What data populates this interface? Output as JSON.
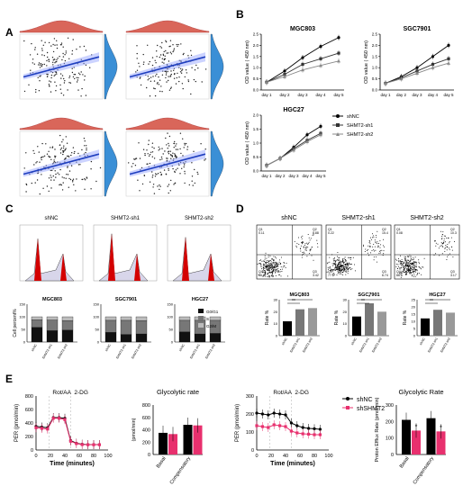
{
  "panel_labels": {
    "A": "A",
    "B": "B",
    "C": "C",
    "D": "D",
    "E": "E"
  },
  "colors": {
    "blue": "#1f3fbf",
    "red_density": "#d9665a",
    "blue_density": "#3a8fd6",
    "pink": "#e8306e",
    "bar_black": "#111111",
    "bar_gray": "#777777",
    "bar_light": "#bbbbbb"
  },
  "panel_B": {
    "legend": [
      "shNC",
      "SHMT2-sh1",
      "SHMT2-sh2"
    ],
    "ylabel": "OD value ( 450 nm)",
    "ticks": [
      "day 1",
      "day 2",
      "day 3",
      "day 4",
      "day 5"
    ]
  },
  "panel_C": {
    "titles": [
      "shNC",
      "SHMT2-sh1",
      "SHMT2-sh2"
    ],
    "legend": [
      "G0/G1",
      "S",
      "G2/M"
    ],
    "ylabel": "Cell percent%"
  },
  "panel_D": {
    "titles": [
      "shNC",
      "SHMT2-sh1",
      "SHMT2-sh2"
    ],
    "ylabel": "Rate %",
    "quadrants": [
      [
        "0.11",
        "8.88",
        "86.6",
        "3.42"
      ],
      [
        "0.22",
        "15.4",
        "77.8",
        "6.74"
      ],
      [
        "0.08",
        "10.3",
        "86.6",
        "3.17"
      ]
    ],
    "sig": [
      "**",
      "*"
    ]
  },
  "panel_E": {
    "per_ylabel": "PER (pmol/min)",
    "per_xlabel": "Time (minutes)",
    "injections": [
      "Rot/AA",
      "2-DG"
    ],
    "gly_title_1": "Glycolytic rate",
    "gly_ylabel_1": "(pmol/min)",
    "gly_cats": [
      "Basal",
      "Compensatory"
    ],
    "gly_title_2": "Glycolytic Rate",
    "gly_ylabel_2": "Proton Efflux Rate (pmol/min)",
    "legend": [
      "shNC",
      "shSHMT2"
    ],
    "star": "*"
  },
  "chart_data": [
    {
      "type": "line",
      "title": "MGC803",
      "categories": [
        "day 1",
        "day 2",
        "day 3",
        "day 4",
        "day 5"
      ],
      "ylim": [
        0,
        2.5
      ],
      "yticks": [
        "0.0",
        "0.5",
        "1.0",
        "1.5",
        "2.0",
        "2.5"
      ],
      "series": [
        {
          "name": "shNC",
          "values": [
            0.35,
            0.85,
            1.45,
            1.95,
            2.35
          ]
        },
        {
          "name": "SHMT2-sh1",
          "values": [
            0.35,
            0.7,
            1.15,
            1.4,
            1.65
          ]
        },
        {
          "name": "SHMT2-sh2",
          "values": [
            0.35,
            0.6,
            0.9,
            1.1,
            1.3
          ]
        }
      ]
    },
    {
      "type": "line",
      "title": "SGC7901",
      "categories": [
        "day 1",
        "day 2",
        "day 3",
        "day 4",
        "day 5"
      ],
      "ylim": [
        0,
        2.5
      ],
      "yticks": [
        "0.0",
        "0.5",
        "1.0",
        "1.5",
        "2.0",
        "2.5"
      ],
      "series": [
        {
          "name": "shNC",
          "values": [
            0.3,
            0.6,
            1.0,
            1.5,
            2.0
          ]
        },
        {
          "name": "SHMT2-sh1",
          "values": [
            0.3,
            0.55,
            0.85,
            1.15,
            1.4
          ]
        },
        {
          "name": "SHMT2-sh2",
          "values": [
            0.3,
            0.5,
            0.75,
            1.0,
            1.2
          ]
        }
      ]
    },
    {
      "type": "line",
      "title": "HGC27",
      "categories": [
        "day 1",
        "day 2",
        "day 3",
        "day 4",
        "day 5"
      ],
      "ylim": [
        0,
        2.0
      ],
      "yticks": [
        "0.0",
        "0.5",
        "1.0",
        "1.5",
        "2.0"
      ],
      "series": [
        {
          "name": "shNC",
          "values": [
            0.2,
            0.45,
            0.85,
            1.3,
            1.6
          ]
        },
        {
          "name": "SHMT2-sh1",
          "values": [
            0.2,
            0.45,
            0.8,
            1.1,
            1.35
          ]
        },
        {
          "name": "SHMT2-sh2",
          "values": [
            0.2,
            0.45,
            0.75,
            1.05,
            1.3
          ]
        }
      ]
    },
    {
      "type": "bar",
      "title": "MGC803",
      "categories": [
        "shNC",
        "SHMT2-sh1",
        "SHMT2-sh2"
      ],
      "stack": true,
      "series": [
        {
          "name": "G0/G1",
          "values": [
            58,
            45,
            47
          ]
        },
        {
          "name": "S",
          "values": [
            30,
            42,
            38
          ]
        },
        {
          "name": "G2/M",
          "values": [
            12,
            13,
            15
          ]
        }
      ],
      "ylim": [
        0,
        150
      ],
      "yticks": [
        "0",
        "50",
        "100",
        "150"
      ]
    },
    {
      "type": "bar",
      "title": "SGC7901",
      "categories": [
        "shNC",
        "SHMT2-sh1",
        "SHMT2-sh2"
      ],
      "stack": true,
      "series": [
        {
          "name": "G0/G1",
          "values": [
            38,
            30,
            32
          ]
        },
        {
          "name": "S",
          "values": [
            48,
            56,
            53
          ]
        },
        {
          "name": "G2/M",
          "values": [
            14,
            14,
            15
          ]
        }
      ],
      "ylim": [
        0,
        150
      ],
      "yticks": [
        "0",
        "50",
        "100",
        "150"
      ]
    },
    {
      "type": "bar",
      "title": "HGC27",
      "categories": [
        "shNC",
        "SHMT2-sh1",
        "SHMT2-sh2"
      ],
      "stack": true,
      "series": [
        {
          "name": "G0/G1",
          "values": [
            40,
            32,
            34
          ]
        },
        {
          "name": "S",
          "values": [
            46,
            54,
            52
          ]
        },
        {
          "name": "G2/M",
          "values": [
            14,
            14,
            14
          ]
        }
      ],
      "ylim": [
        0,
        150
      ],
      "yticks": [
        "0",
        "50",
        "100",
        "150"
      ]
    },
    {
      "type": "bar",
      "title": "MGC803",
      "categories": [
        "shNC",
        "SHMT2-sh1",
        "SHMT2-sh2"
      ],
      "values": [
        12,
        22,
        23
      ],
      "ylim": [
        0,
        30
      ],
      "yticks": [
        "0",
        "10",
        "20",
        "30"
      ]
    },
    {
      "type": "bar",
      "title": "SGC7901",
      "categories": [
        "shNC",
        "SHMT2-sh1",
        "SHMT2-sh2"
      ],
      "values": [
        16,
        27,
        20
      ],
      "ylim": [
        0,
        30
      ],
      "yticks": [
        "0",
        "10",
        "20",
        "30"
      ]
    },
    {
      "type": "bar",
      "title": "HGC27",
      "categories": [
        "shNC",
        "SHMT2-sh1",
        "SHMT2-sh2"
      ],
      "values": [
        12,
        18,
        16
      ],
      "ylim": [
        0,
        25
      ],
      "yticks": [
        "0",
        "5",
        "10",
        "15",
        "20",
        "25"
      ]
    },
    {
      "type": "line",
      "title": "",
      "x": [
        0,
        8,
        16,
        24,
        32,
        40,
        48,
        56,
        64,
        72,
        80,
        88
      ],
      "xlim": [
        0,
        100
      ],
      "xticks": [
        "0",
        "20",
        "40",
        "60",
        "80",
        "100"
      ],
      "ylim": [
        0,
        800
      ],
      "yticks": [
        "0",
        "200",
        "400",
        "600",
        "800"
      ],
      "series": [
        {
          "name": "shNC",
          "values": [
            350,
            340,
            330,
            480,
            480,
            470,
            140,
            100,
            85,
            80,
            80,
            80
          ]
        },
        {
          "name": "shSHMT2",
          "values": [
            330,
            320,
            310,
            470,
            470,
            450,
            130,
            95,
            80,
            78,
            78,
            78
          ]
        }
      ]
    },
    {
      "type": "bar",
      "title": "Glycolytic rate",
      "categories": [
        "Basal",
        "Compensatory"
      ],
      "series": [
        {
          "name": "shNC",
          "values": [
            350,
            480
          ]
        },
        {
          "name": "shSHMT2",
          "values": [
            330,
            470
          ]
        }
      ],
      "ylim": [
        0,
        800
      ],
      "yticks": [
        "0",
        "200",
        "400",
        "600",
        "800"
      ]
    },
    {
      "type": "line",
      "title": "",
      "x": [
        0,
        8,
        16,
        24,
        32,
        40,
        48,
        56,
        64,
        72,
        80,
        88
      ],
      "xlim": [
        0,
        100
      ],
      "xticks": [
        "0",
        "20",
        "40",
        "60",
        "80",
        "100"
      ],
      "ylim": [
        0,
        300
      ],
      "yticks": [
        "0",
        "100",
        "200",
        "300"
      ],
      "series": [
        {
          "name": "shNC",
          "values": [
            205,
            200,
            195,
            205,
            200,
            195,
            150,
            135,
            125,
            120,
            118,
            115
          ]
        },
        {
          "name": "shSHMT2",
          "values": [
            135,
            130,
            125,
            140,
            135,
            130,
            105,
            95,
            90,
            88,
            85,
            85
          ]
        }
      ]
    },
    {
      "type": "bar",
      "title": "Glycolytic Rate",
      "categories": [
        "Basal",
        "Compensatory"
      ],
      "series": [
        {
          "name": "shNC",
          "values": [
            210,
            220
          ]
        },
        {
          "name": "shSHMT2",
          "values": [
            145,
            140
          ]
        }
      ],
      "ylim": [
        0,
        300
      ],
      "yticks": [
        "0",
        "100",
        "200",
        "300"
      ]
    }
  ]
}
